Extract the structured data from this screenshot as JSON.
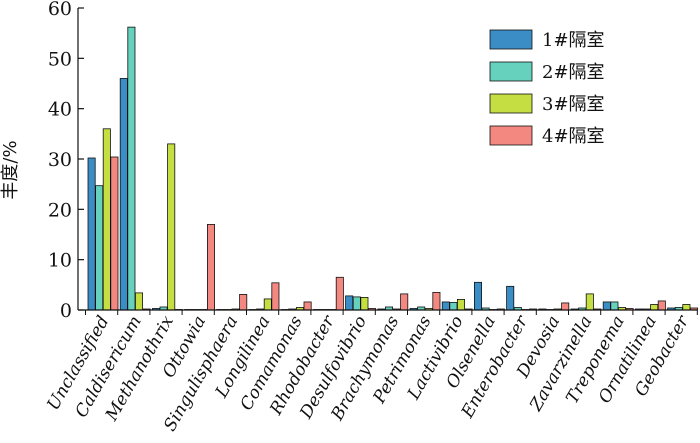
{
  "chart_data": {
    "type": "bar",
    "ylabel": "丰度/%",
    "ylim": [
      0,
      60
    ],
    "yticks": [
      0,
      10,
      20,
      30,
      40,
      50,
      60
    ],
    "grid": false,
    "legend_position": "top-right",
    "categories": [
      "Unclassified",
      "Caldisericum",
      "Methanothrix",
      "Ottowia",
      "Singulisphaera",
      "Longilinea",
      "Comamonas",
      "Rhodobacter",
      "Desulfovibrio",
      "Brachymonas",
      "Petrimonas",
      "Lactivibrio",
      "Olsenella",
      "Enterobacter",
      "Devosia",
      "Zavarzinella",
      "Treponema",
      "Ornatilinea",
      "Geobacter"
    ],
    "series": [
      {
        "name": "1#隔室",
        "color": "#3b8dc5",
        "values": [
          30.2,
          46.0,
          0.3,
          0.1,
          0.1,
          0.1,
          0.1,
          0.1,
          2.8,
          0.2,
          0.3,
          1.6,
          5.5,
          4.7,
          0.2,
          0.2,
          1.6,
          0.2,
          0.4
        ]
      },
      {
        "name": "2#隔室",
        "color": "#66d1bd",
        "values": [
          24.7,
          56.2,
          0.6,
          0.1,
          0.1,
          0.2,
          0.2,
          0.1,
          2.6,
          0.6,
          0.6,
          1.5,
          0.4,
          0.5,
          0.1,
          0.4,
          1.6,
          0.2,
          0.5
        ]
      },
      {
        "name": "3#隔室",
        "color": "#c5df43",
        "values": [
          36.0,
          3.4,
          33.0,
          0.1,
          0.2,
          2.2,
          0.5,
          0.1,
          2.5,
          0.2,
          0.3,
          2.1,
          0.1,
          0.1,
          0.2,
          3.2,
          0.5,
          1.1,
          1.1
        ]
      },
      {
        "name": "4#隔室",
        "color": "#f28880",
        "values": [
          30.4,
          0.2,
          0.1,
          17.0,
          3.1,
          5.4,
          1.6,
          6.5,
          0.3,
          3.2,
          3.5,
          0.2,
          0.2,
          0.2,
          1.4,
          0.2,
          0.3,
          1.8,
          0.4
        ]
      }
    ]
  }
}
